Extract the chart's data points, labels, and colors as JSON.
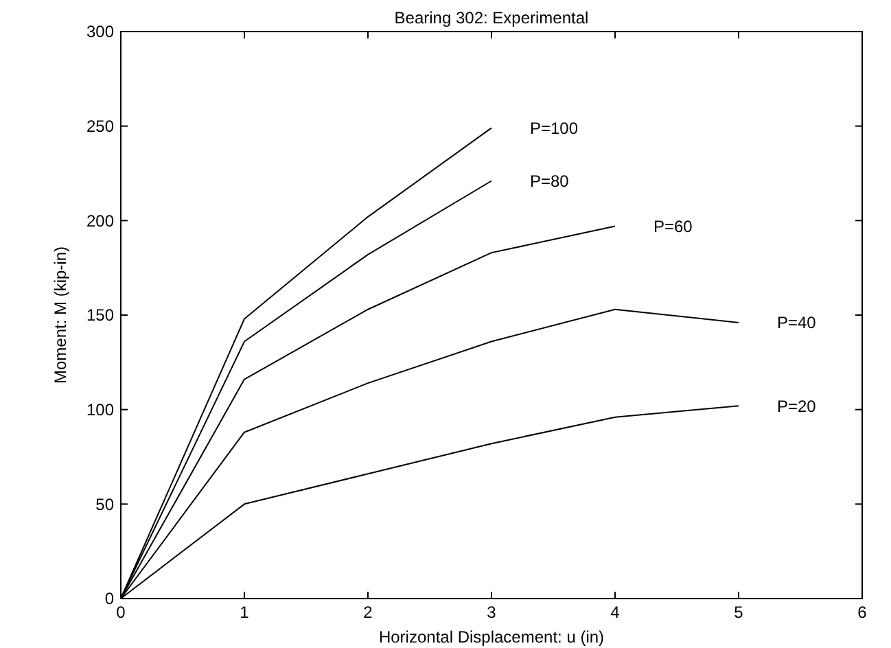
{
  "chart_data": {
    "type": "line",
    "title": "Bearing 302: Experimental",
    "xlabel": "Horizontal Displacement: u (in)",
    "ylabel": "Moment: M (kip-in)",
    "x": [
      0,
      1,
      2,
      3,
      4,
      5
    ],
    "series": [
      {
        "name": "P=100",
        "color": "#000000",
        "values": [
          0,
          148,
          202,
          249,
          null,
          null
        ]
      },
      {
        "name": "P=80",
        "color": "#000000",
        "values": [
          0,
          136,
          182,
          221,
          null,
          null
        ]
      },
      {
        "name": "P=60",
        "color": "#000000",
        "values": [
          0,
          116,
          153,
          183,
          197,
          null
        ]
      },
      {
        "name": "P=40",
        "color": "#000000",
        "values": [
          0,
          88,
          114,
          136,
          153,
          146
        ]
      },
      {
        "name": "P=20",
        "color": "#000000",
        "values": [
          0,
          50,
          66,
          82,
          96,
          102
        ]
      }
    ],
    "xlim": [
      0,
      6
    ],
    "xticks": [
      0,
      1,
      2,
      3,
      4,
      5,
      6
    ],
    "ylim": [
      0,
      300
    ],
    "yticks": [
      0,
      50,
      100,
      150,
      200,
      250,
      300
    ],
    "grid": false,
    "legend": "right",
    "marker": "none",
    "line_style": "solid"
  }
}
